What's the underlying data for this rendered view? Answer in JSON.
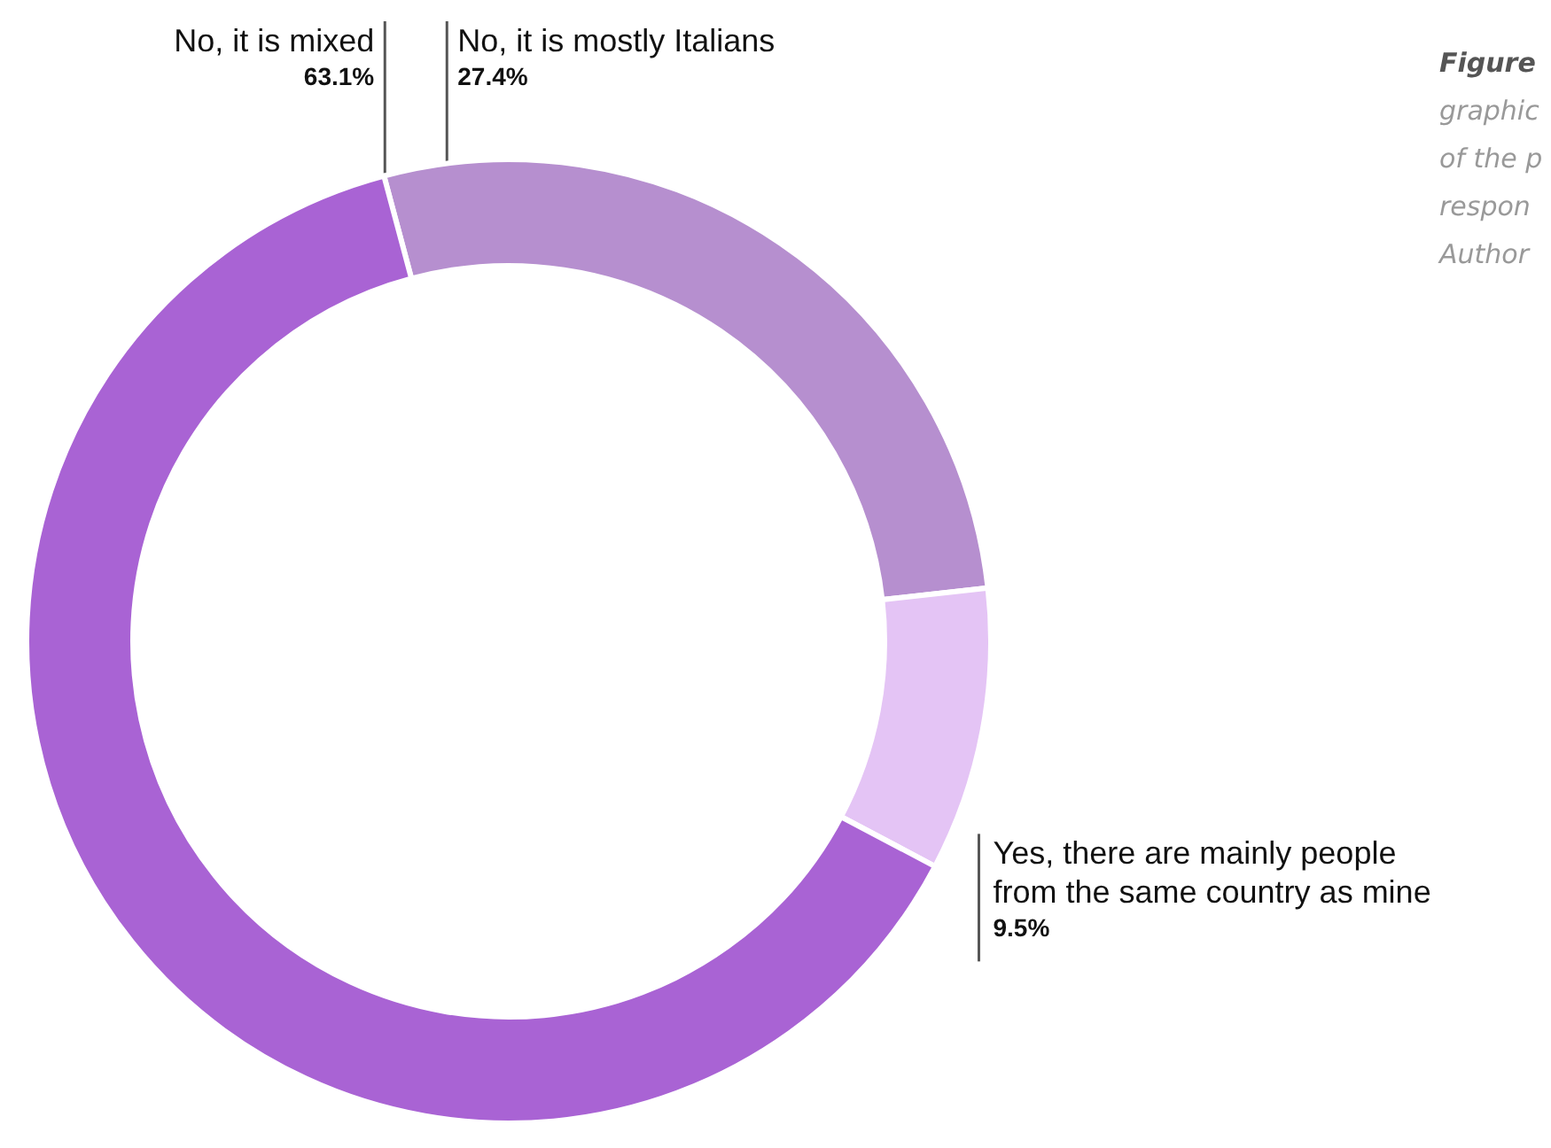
{
  "chart_data": {
    "type": "donut",
    "categories": [
      "No, it is mostly Italians",
      "Yes, there are mainly people\nfrom the same country as mine",
      "No, it is mixed"
    ],
    "values": [
      27.4,
      9.5,
      63.1
    ],
    "value_labels": [
      "27.4%",
      "9.5%",
      "63.1%"
    ],
    "colors": [
      "#b68fcf",
      "#e4c4f5",
      "#a963d4"
    ],
    "annotations": [
      "Figure",
      "graphic",
      "of the p",
      "respon",
      "Author"
    ],
    "legend": false
  }
}
